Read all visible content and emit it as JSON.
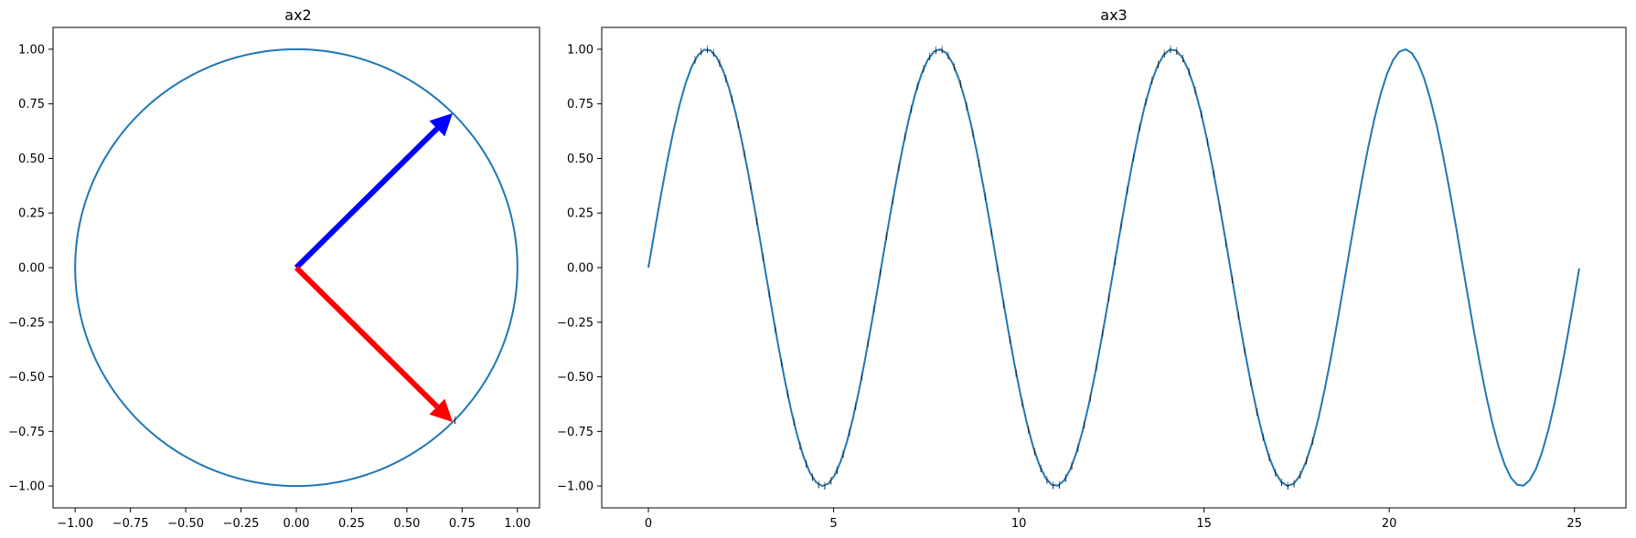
{
  "chart_data": [
    {
      "type": "line",
      "title": "ax2",
      "xlabel": "",
      "ylabel": "",
      "xlim": [
        -1.1,
        1.1
      ],
      "ylim": [
        -1.1,
        1.1
      ],
      "xticks": [
        "−1.00",
        "−0.75",
        "−0.50",
        "−0.25",
        "0.00",
        "0.25",
        "0.50",
        "0.75",
        "1.00"
      ],
      "xtick_values": [
        -1.0,
        -0.75,
        -0.5,
        -0.25,
        0.0,
        0.25,
        0.5,
        0.75,
        1.0
      ],
      "yticks": [
        "−1.00",
        "−0.75",
        "−0.50",
        "−0.25",
        "0.00",
        "0.25",
        "0.50",
        "0.75",
        "1.00"
      ],
      "ytick_values": [
        -1.0,
        -0.75,
        -0.5,
        -0.25,
        0.0,
        0.25,
        0.5,
        0.75,
        1.0
      ],
      "grid": false,
      "series": [
        {
          "kind": "circle",
          "center": [
            0,
            0
          ],
          "radius": 1.0,
          "color": "#1f77b4"
        }
      ],
      "arrows": [
        {
          "from": [
            0,
            0
          ],
          "to": [
            0.707,
            0.707
          ],
          "color": "#0000ff"
        },
        {
          "from": [
            0,
            0
          ],
          "to": [
            0.707,
            -0.707
          ],
          "color": "#ff0000"
        }
      ],
      "marker_text": "i",
      "markers": [
        [
          0.707,
          -0.707
        ]
      ]
    },
    {
      "type": "line",
      "title": "ax3",
      "xlabel": "",
      "ylabel": "",
      "xlim": [
        -1.26,
        26.39
      ],
      "ylim": [
        -1.1,
        1.1
      ],
      "xticks": [
        "0",
        "5",
        "10",
        "15",
        "20",
        "25"
      ],
      "xtick_values": [
        0,
        5,
        10,
        15,
        20,
        25
      ],
      "yticks": [
        "−1.00",
        "−0.75",
        "−0.50",
        "−0.25",
        "0.00",
        "0.25",
        "0.50",
        "0.75",
        "1.00"
      ],
      "ytick_values": [
        -1.0,
        -0.75,
        -0.5,
        -0.25,
        0.0,
        0.25,
        0.5,
        0.75,
        1.0
      ],
      "grid": false,
      "series": [
        {
          "kind": "function",
          "fn": "sin",
          "x_range": [
            0,
            25.13
          ],
          "color": "#1f77b4"
        }
      ],
      "marker_text": "i",
      "marker_x_range": [
        1.26,
        18.03
      ],
      "marker_step": 0.1667
    }
  ],
  "colors": {
    "line": "#1f77b4",
    "arrow_blue": "#0000ff",
    "arrow_red": "#ff0000",
    "spine": "#000000"
  }
}
